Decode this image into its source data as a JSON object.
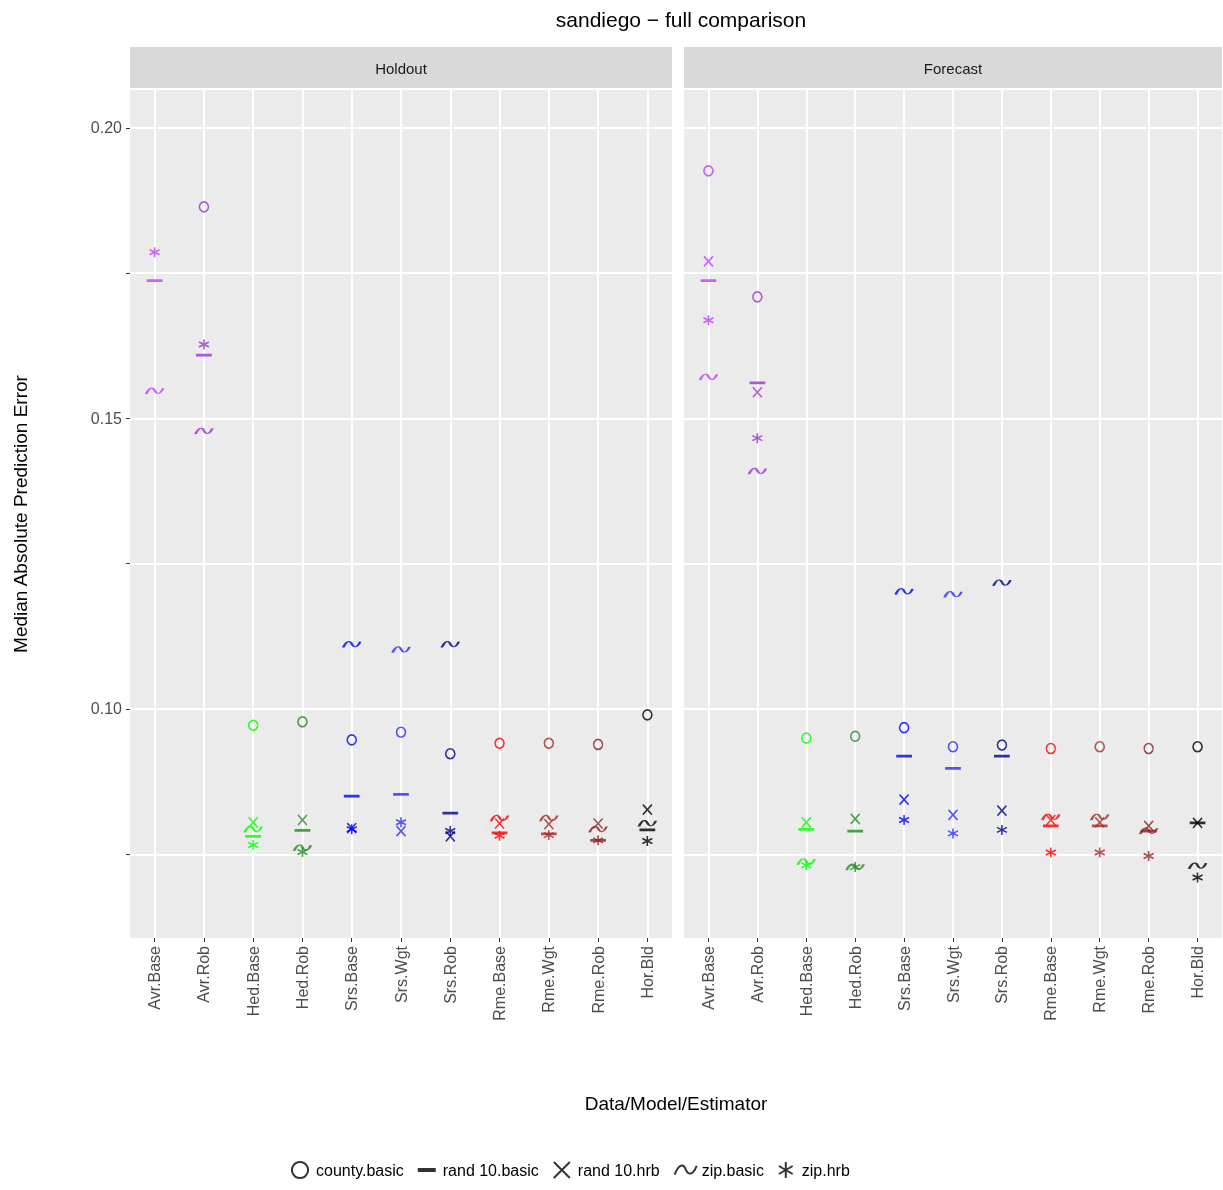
{
  "chart_data": [
    {
      "type": "scatter",
      "title": "sandiego − full comparison",
      "subtitle": "Holdout",
      "xlabel": "Data/Model/Estimator",
      "ylabel": "Median Absolute Prediction Error",
      "categories": [
        "Avr.Base",
        "Avr.Rob",
        "Hed.Base",
        "Hed.Rob",
        "Srs.Base",
        "Srs.Wgt",
        "Srs.Rob",
        "Rme.Base",
        "Rme.Wgt",
        "Rme.Rob",
        "Hor.Bld"
      ],
      "ylim": [
        0.0606,
        0.2065
      ],
      "yticks": [
        {
          "value": 0.075,
          "label": null
        },
        {
          "value": 0.1,
          "label": "0.10"
        },
        {
          "value": 0.125,
          "label": null
        },
        {
          "value": 0.15,
          "label": "0.15"
        },
        {
          "value": 0.175,
          "label": null
        },
        {
          "value": 0.2,
          "label": "0.20"
        }
      ],
      "grid": true,
      "legend": "bottom",
      "series": [
        {
          "name": "county.basic",
          "marker": "circle",
          "colors": [
            "#bf3eff",
            "#9a32cd",
            "#00ff00",
            "#228b22",
            "#0000ff",
            "#2a2aff",
            "#00008b",
            "#ff0000",
            "#a52a2a",
            "#8b2323",
            "#000000"
          ],
          "values": [
            null,
            0.1864,
            0.0972,
            0.0978,
            0.0947,
            0.096,
            0.0923,
            0.0941,
            0.0941,
            0.0939,
            0.099
          ]
        },
        {
          "name": "rand 10.basic",
          "colors": [
            "#bf3eff",
            "#9a32cd",
            "#00ff00",
            "#228b22",
            "#0000ff",
            "#2a2aff",
            "#00008b",
            "#ff0000",
            "#a52a2a",
            "#8b2323",
            "#000000"
          ],
          "values": [
            0.1737,
            0.1609,
            0.0781,
            0.0791,
            0.085,
            0.0853,
            0.0821,
            0.0787,
            0.0785,
            0.0774,
            0.0792
          ]
        },
        {
          "name": "rand 10.hrb",
          "marker": "cross",
          "colors": [
            "#bf3eff",
            "#9a32cd",
            "#00ff00",
            "#228b22",
            "#0000ff",
            "#2a2aff",
            "#00008b",
            "#ff0000",
            "#a52a2a",
            "#8b2323",
            "#000000"
          ],
          "values": [
            null,
            null,
            0.0805,
            0.0809,
            0.0795,
            0.079,
            0.0781,
            0.0803,
            0.0802,
            0.0803,
            0.0827
          ]
        },
        {
          "name": "zip.basic",
          "colors": [
            "#bf3eff",
            "#9a32cd",
            "#00ff00",
            "#228b22",
            "#0000ff",
            "#2a2aff",
            "#00008b",
            "#ff0000",
            "#a52a2a",
            "#8b2323",
            "#000000"
          ],
          "values": [
            0.1547,
            0.1478,
            0.0793,
            0.0761,
            0.1111,
            0.1102,
            0.1111,
            0.0812,
            0.0812,
            0.0793,
            0.0803
          ]
        },
        {
          "name": "zip.hrb",
          "colors": [
            "#bf3eff",
            "#9a32cd",
            "#00ff00",
            "#228b22",
            "#0000ff",
            "#2a2aff",
            "#00008b",
            "#ff0000",
            "#a52a2a",
            "#8b2323",
            "#000000"
          ],
          "values": [
            0.1786,
            0.1627,
            0.0766,
            0.0754,
            0.0793,
            0.0805,
            0.079,
            0.0782,
            0.0783,
            0.0774,
            0.0773
          ]
        }
      ]
    },
    {
      "type": "scatter",
      "subtitle": "Forecast",
      "categories": [
        "Avr.Base",
        "Avr.Rob",
        "Hed.Base",
        "Hed.Rob",
        "Srs.Base",
        "Srs.Wgt",
        "Srs.Rob",
        "Rme.Base",
        "Rme.Wgt",
        "Rme.Rob",
        "Hor.Bld"
      ],
      "ylim": [
        0.0606,
        0.2065
      ],
      "yticks": [
        {
          "value": 0.075,
          "label": null
        },
        {
          "value": 0.1,
          "label": null
        },
        {
          "value": 0.125,
          "label": null
        },
        {
          "value": 0.15,
          "label": null
        },
        {
          "value": 0.175,
          "label": null
        },
        {
          "value": 0.2,
          "label": null
        }
      ],
      "grid": true,
      "tick_labels": "x",
      "series": [
        {
          "marker": "circle",
          "colors": [
            "#bf3eff",
            "#9a32cd",
            "#00ff00",
            "#228b22",
            "#0000ff",
            "#2a2aff",
            "#00008b",
            "#ff0000",
            "#a52a2a",
            "#8b2323",
            "#000000"
          ],
          "values": [
            0.1926,
            0.1709,
            0.095,
            0.0953,
            0.0968,
            0.0935,
            0.0938,
            0.0932,
            0.0935,
            0.0932,
            0.0935
          ]
        },
        {
          "colors": [
            "#bf3eff",
            "#9a32cd",
            "#00ff00",
            "#228b22",
            "#0000ff",
            "#2a2aff",
            "#00008b",
            "#ff0000",
            "#a52a2a",
            "#8b2323",
            "#000000"
          ],
          "values": [
            0.1737,
            0.1561,
            0.0793,
            0.079,
            0.0919,
            0.0898,
            0.0919,
            0.0799,
            0.0799,
            0.079,
            0.0804
          ]
        },
        {
          "marker": "cross",
          "colors": [
            "#bf3eff",
            "#9a32cd",
            "#00ff00",
            "#228b22",
            "#0000ff",
            "#2a2aff",
            "#00008b",
            "#ff0000",
            "#a52a2a",
            "#8b2323",
            "#000000"
          ],
          "values": [
            0.177,
            0.1545,
            0.0805,
            0.0811,
            0.0844,
            0.0818,
            0.0825,
            0.0809,
            0.0805,
            0.0799,
            0.0804
          ]
        },
        {
          "colors": [
            "#bf3eff",
            "#9a32cd",
            "#00ff00",
            "#228b22",
            "#0000ff",
            "#2a2aff",
            "#00008b",
            "#ff0000",
            "#a52a2a",
            "#8b2323",
            "#000000"
          ],
          "values": [
            0.1571,
            0.1409,
            0.0737,
            0.0728,
            0.1202,
            0.1197,
            0.1217,
            0.0814,
            0.0814,
            0.079,
            0.073
          ]
        },
        {
          "colors": [
            "#bf3eff",
            "#9a32cd",
            "#00ff00",
            "#228b22",
            "#0000ff",
            "#2a2aff",
            "#00008b",
            "#ff0000",
            "#a52a2a",
            "#8b2323",
            "#000000"
          ],
          "values": [
            0.1669,
            0.1466,
            0.0731,
            0.0728,
            0.0809,
            0.0786,
            0.0792,
            0.0753,
            0.0753,
            0.0747,
            0.071
          ]
        }
      ]
    }
  ]
}
